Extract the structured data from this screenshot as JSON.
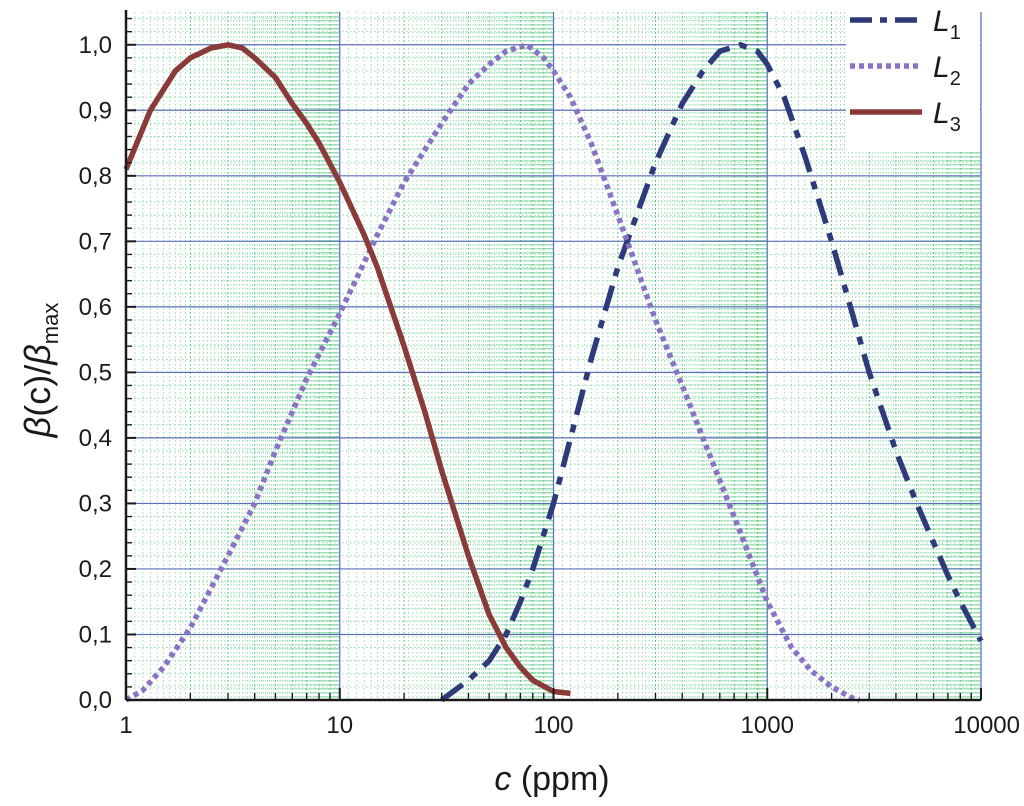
{
  "chart_data": {
    "type": "line",
    "xscale": "log",
    "xlim": [
      1,
      10000
    ],
    "ylim": [
      0,
      1.05
    ],
    "grid": true,
    "legend_position": "top-right",
    "xlabel": {
      "italic": "c",
      "rest": " (ppm)"
    },
    "ylabel": {
      "beta1": "β",
      "mid": "(c)/",
      "beta2": "β",
      "sub": "max"
    },
    "x_ticks": [
      {
        "value": 1,
        "label": "1"
      },
      {
        "value": 10,
        "label": "10"
      },
      {
        "value": 100,
        "label": "100"
      },
      {
        "value": 1000,
        "label": "1000"
      },
      {
        "value": 10000,
        "label": "10000"
      }
    ],
    "y_ticks": [
      {
        "value": 0.0,
        "label": "0,0"
      },
      {
        "value": 0.1,
        "label": "0,1"
      },
      {
        "value": 0.2,
        "label": "0,2"
      },
      {
        "value": 0.3,
        "label": "0,3"
      },
      {
        "value": 0.4,
        "label": "0,4"
      },
      {
        "value": 0.5,
        "label": "0,5"
      },
      {
        "value": 0.6,
        "label": "0,6"
      },
      {
        "value": 0.7,
        "label": "0,7"
      },
      {
        "value": 0.8,
        "label": "0,8"
      },
      {
        "value": 0.9,
        "label": "0,9"
      },
      {
        "value": 1.0,
        "label": "1,0"
      }
    ],
    "series": [
      {
        "name": "L",
        "sub": "1",
        "color": "#2e3a7a",
        "style": "dashdot",
        "points": [
          [
            30,
            0
          ],
          [
            40,
            0.03
          ],
          [
            50,
            0.06
          ],
          [
            60,
            0.1
          ],
          [
            70,
            0.15
          ],
          [
            80,
            0.2
          ],
          [
            100,
            0.3
          ],
          [
            150,
            0.52
          ],
          [
            200,
            0.66
          ],
          [
            300,
            0.82
          ],
          [
            400,
            0.91
          ],
          [
            500,
            0.96
          ],
          [
            600,
            0.99
          ],
          [
            750,
            1.0
          ],
          [
            900,
            0.99
          ],
          [
            1000,
            0.97
          ],
          [
            1200,
            0.92
          ],
          [
            1500,
            0.83
          ],
          [
            2000,
            0.7
          ],
          [
            3000,
            0.5
          ],
          [
            4000,
            0.38
          ],
          [
            5000,
            0.3
          ],
          [
            6000,
            0.24
          ],
          [
            7000,
            0.19
          ],
          [
            8000,
            0.15
          ],
          [
            10000,
            0.09
          ]
        ]
      },
      {
        "name": "L",
        "sub": "2",
        "color": "#8a73c4",
        "style": "dotted",
        "points": [
          [
            1,
            0
          ],
          [
            1.2,
            0.015
          ],
          [
            1.5,
            0.05
          ],
          [
            2,
            0.11
          ],
          [
            3,
            0.22
          ],
          [
            4,
            0.3
          ],
          [
            5,
            0.38
          ],
          [
            7,
            0.49
          ],
          [
            10,
            0.59
          ],
          [
            15,
            0.71
          ],
          [
            20,
            0.79
          ],
          [
            30,
            0.88
          ],
          [
            40,
            0.94
          ],
          [
            50,
            0.97
          ],
          [
            60,
            0.99
          ],
          [
            75,
            1.0
          ],
          [
            90,
            0.98
          ],
          [
            100,
            0.96
          ],
          [
            120,
            0.92
          ],
          [
            150,
            0.85
          ],
          [
            200,
            0.74
          ],
          [
            300,
            0.58
          ],
          [
            400,
            0.48
          ],
          [
            500,
            0.4
          ],
          [
            700,
            0.28
          ],
          [
            1000,
            0.15
          ],
          [
            1300,
            0.08
          ],
          [
            1600,
            0.045
          ],
          [
            2000,
            0.02
          ],
          [
            2500,
            0.003
          ],
          [
            2700,
            0
          ]
        ]
      },
      {
        "name": "L",
        "sub": "3",
        "color": "#8b3a3a",
        "style": "solid",
        "points": [
          [
            1,
            0.81
          ],
          [
            1.3,
            0.9
          ],
          [
            1.7,
            0.96
          ],
          [
            2,
            0.98
          ],
          [
            2.5,
            0.995
          ],
          [
            3,
            1.0
          ],
          [
            3.5,
            0.995
          ],
          [
            4,
            0.98
          ],
          [
            5,
            0.95
          ],
          [
            6,
            0.91
          ],
          [
            7,
            0.88
          ],
          [
            8,
            0.85
          ],
          [
            10,
            0.79
          ],
          [
            13,
            0.71
          ],
          [
            15,
            0.66
          ],
          [
            20,
            0.54
          ],
          [
            25,
            0.44
          ],
          [
            30,
            0.35
          ],
          [
            40,
            0.22
          ],
          [
            50,
            0.13
          ],
          [
            60,
            0.08
          ],
          [
            70,
            0.05
          ],
          [
            80,
            0.03
          ],
          [
            100,
            0.013
          ],
          [
            120,
            0.01
          ]
        ]
      }
    ]
  }
}
